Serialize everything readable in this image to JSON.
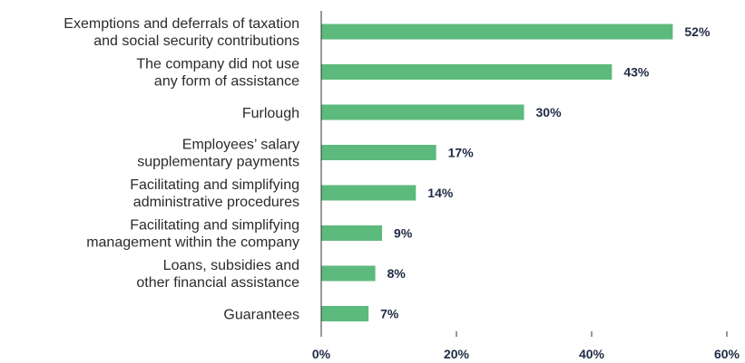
{
  "chart_data": {
    "type": "bar",
    "orientation": "horizontal",
    "categories": [
      [
        "Exemptions and deferrals of taxation",
        "and social security contributions"
      ],
      [
        "The company did not use",
        "any form of assistance"
      ],
      [
        "Furlough"
      ],
      [
        "Employees’ salary",
        "supplementary payments"
      ],
      [
        "Facilitating and simplifying",
        "administrative procedures"
      ],
      [
        "Facilitating and simplifying",
        "management within the company"
      ],
      [
        "Loans, subsidies and",
        "other financial assistance"
      ],
      [
        "Guarantees"
      ]
    ],
    "values": [
      52,
      43,
      30,
      17,
      14,
      9,
      8,
      7
    ],
    "value_labels": [
      "52%",
      "43%",
      "30%",
      "17%",
      "14%",
      "9%",
      "8%",
      "7%"
    ],
    "xlim": [
      0,
      60
    ],
    "x_ticks": [
      0,
      20,
      40,
      60
    ],
    "x_tick_labels": [
      "0%",
      "20%",
      "40%",
      "60%"
    ],
    "grid": false,
    "colors": {
      "bar": "#5cba7d",
      "axis": "#333333",
      "value_label": "#1f2a44",
      "category_label": "#2b2b2b"
    }
  }
}
